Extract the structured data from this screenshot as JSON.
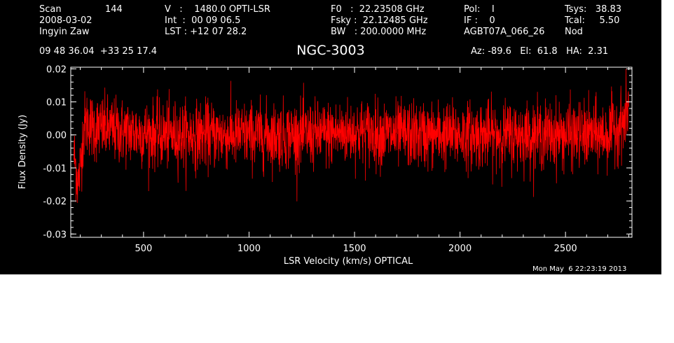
{
  "header": {
    "scan_label": "Scan",
    "scan_number": "144",
    "date": "2008-03-02",
    "observer": "Ingyin Zaw",
    "coords": "09 48 36.04  +33 25 17.4",
    "velocity": "V   :    1480.0 OPTI-LSR",
    "integration": "Int  :  00 09 06.5",
    "lst": "LST : +12 07 28.2",
    "f0": "F0   :  22.23508 GHz",
    "fsky": "Fsky :  22.12485 GHz",
    "bw": "BW   : 200.0000 MHz",
    "pol": "Pol:    I",
    "if": "IF :    0",
    "project": "AGBT07A_066_26",
    "tsys": "Tsys:   38.83",
    "tcal": "Tcal:     5.50",
    "mode": "Nod",
    "pointing": "Az: -89.6   El:  61.8   HA:  2.31",
    "timestamp": "Mon May  6 22:23:19 2013"
  },
  "chart_data": {
    "type": "line",
    "title": "NGC-3003",
    "xlabel": "LSR Velocity (km/s) OPTICAL",
    "ylabel": "Flux Density (Jy)",
    "xlim": [
      155,
      2815
    ],
    "ylim": [
      -0.031,
      0.0205
    ],
    "x_ticks": [
      500,
      1000,
      1500,
      2000,
      2500
    ],
    "x_tick_labels": [
      "500",
      "1000",
      "1500",
      "2000",
      "2500"
    ],
    "y_ticks": [
      -0.03,
      -0.02,
      -0.01,
      0.0,
      0.01,
      0.02
    ],
    "y_tick_labels": [
      "-0.03",
      "-0.02",
      "-0.01",
      "0.00",
      "0.01",
      "0.02"
    ],
    "noise_rms": 0.005,
    "grid": false,
    "colors": {
      "background": "#000000",
      "axes": "#ffffff",
      "trace": "#ff0000"
    },
    "series": [
      {
        "x": [
          170,
          180,
          190,
          200,
          210,
          220,
          240,
          260,
          300,
          400,
          600,
          800,
          1000,
          1200,
          1330,
          1500,
          1700,
          1900,
          2100,
          2300,
          2500,
          2700,
          2750,
          2780,
          2795,
          2800
        ],
        "values": [
          -0.006,
          -0.01,
          -0.015,
          -0.01,
          -0.002,
          0.003,
          0.004,
          0.002,
          0.002,
          0.001,
          0.0,
          0.0,
          0.0,
          0.0,
          0.0,
          0.001,
          0.0,
          0.0,
          0.0,
          0.0,
          0.0,
          0.0,
          0.003,
          0.004,
          0.008,
          0.01
        ]
      }
    ]
  }
}
